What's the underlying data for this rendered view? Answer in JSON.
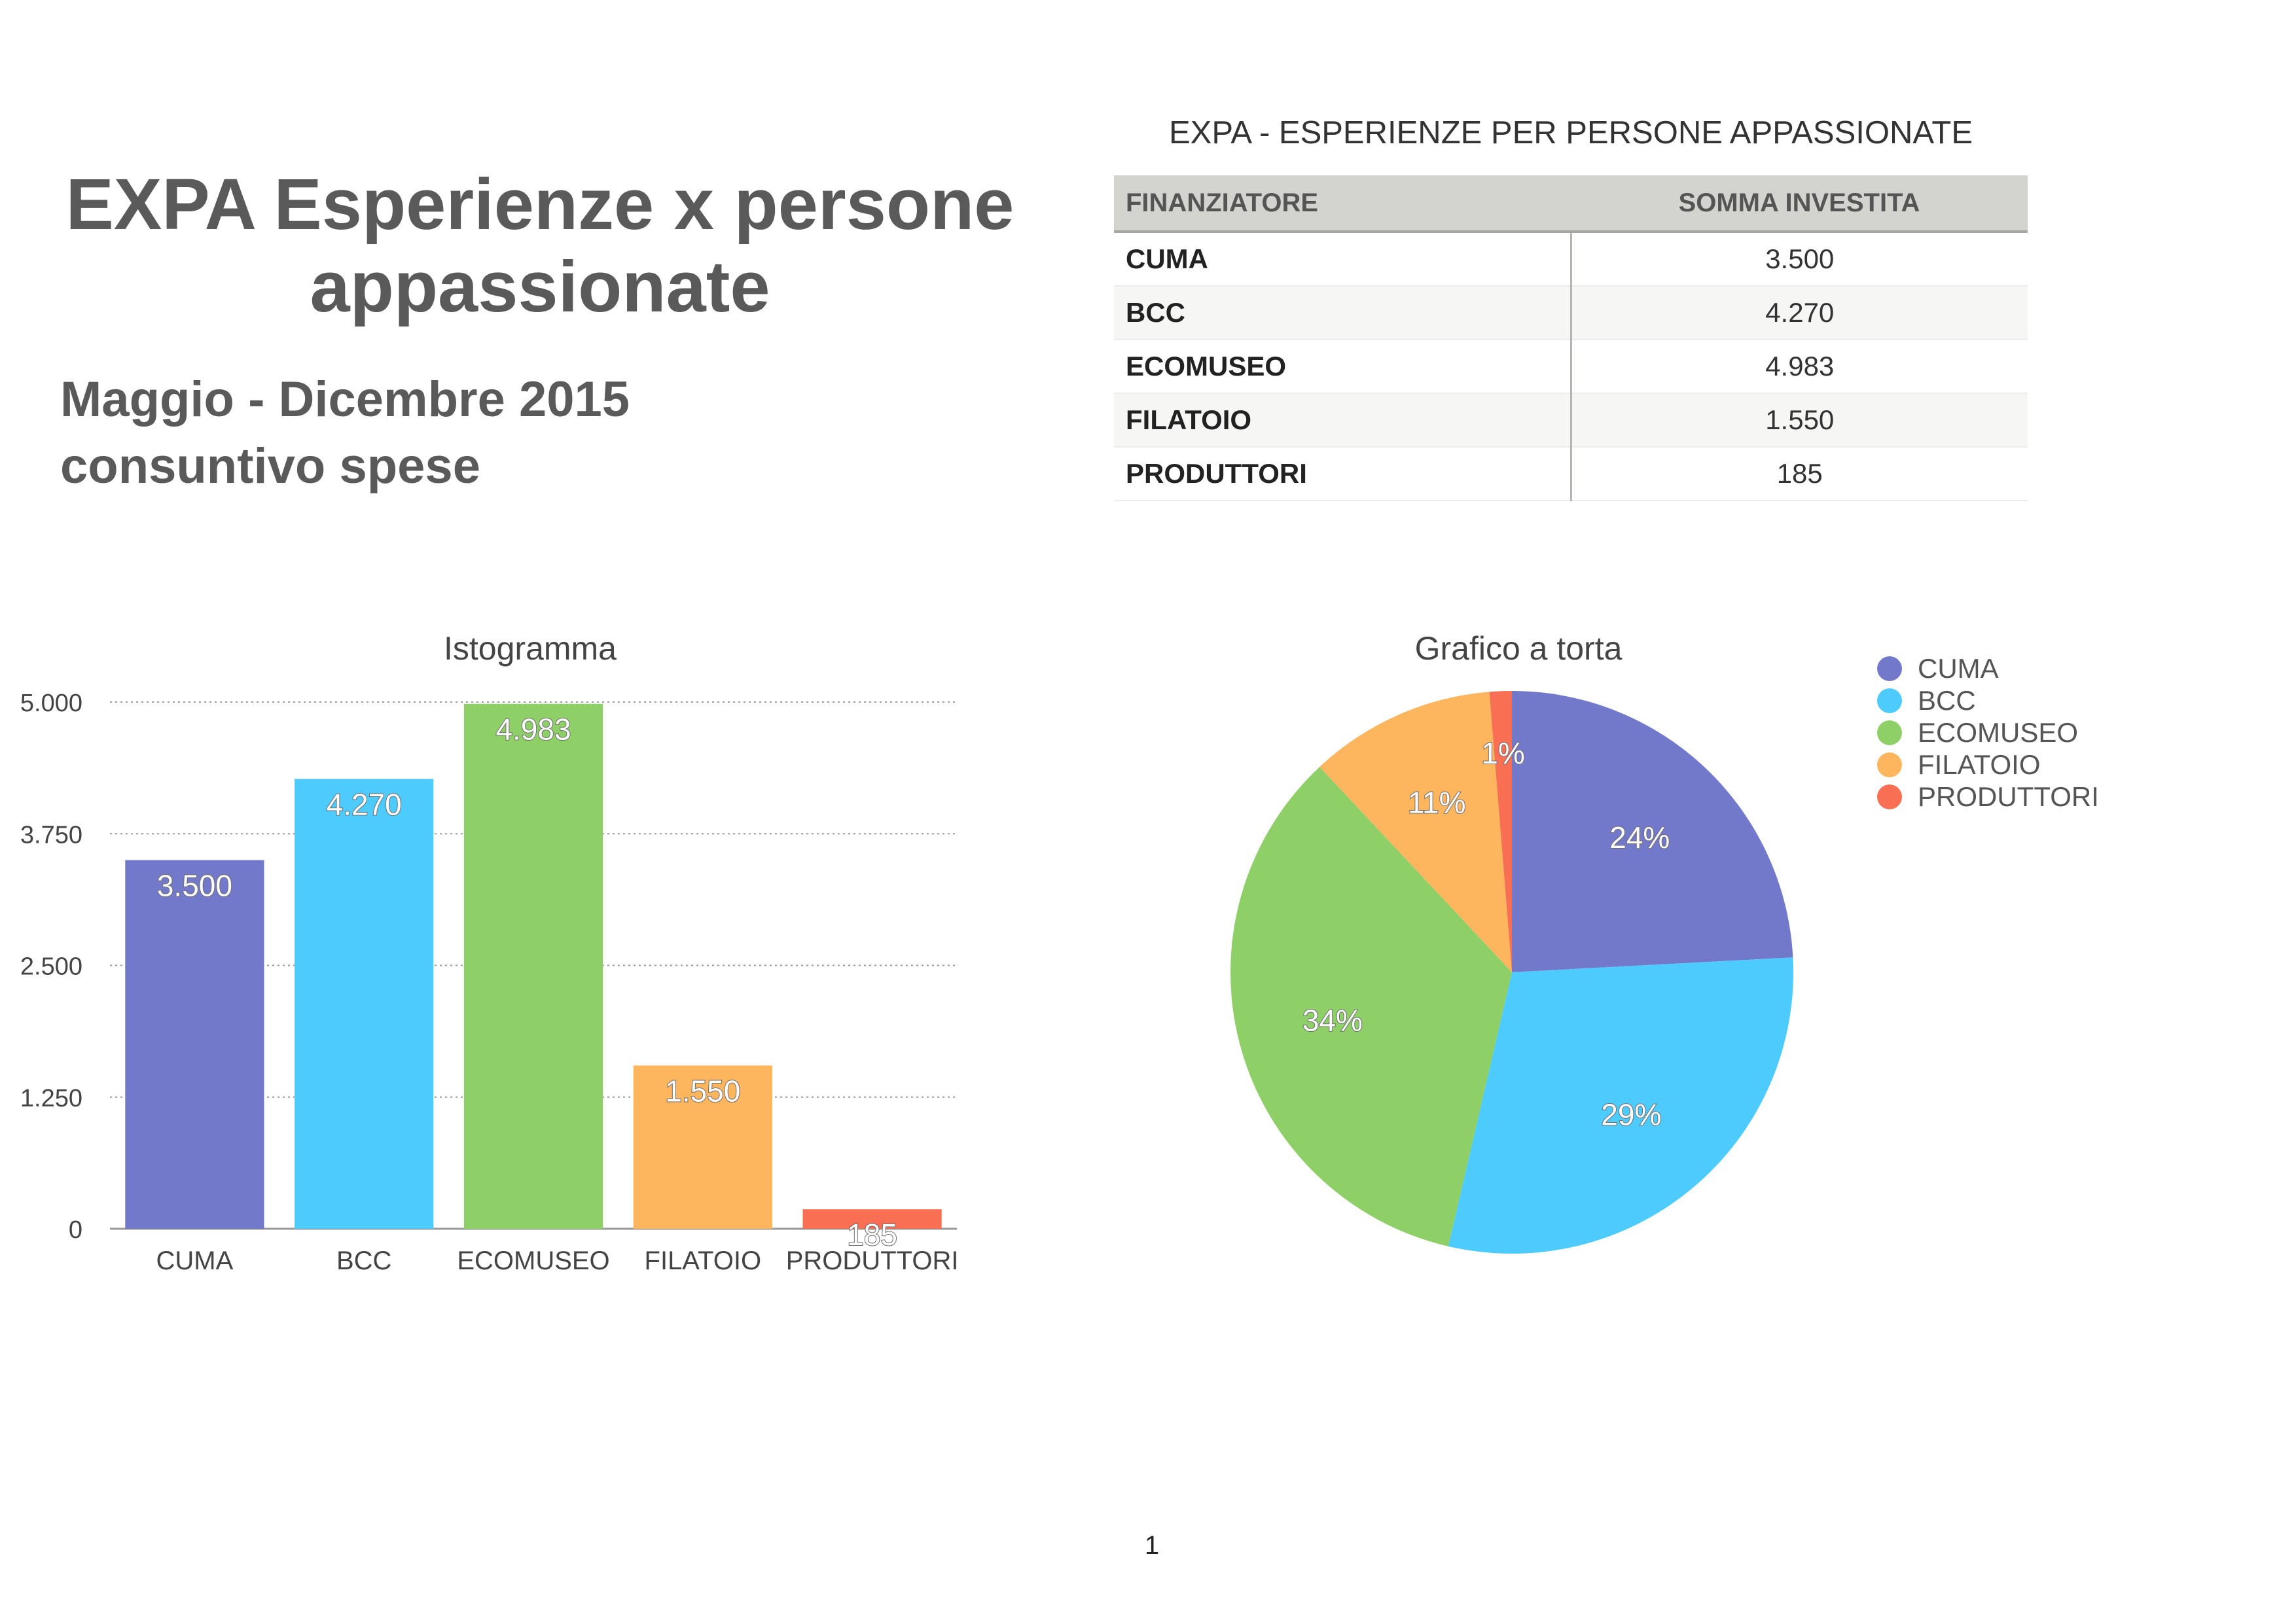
{
  "document": {
    "title": "EXPA Esperienze x persone appassionate",
    "subtitle_line1": "Maggio - Dicembre 2015",
    "subtitle_line2": "consuntivo spese",
    "page_number": "1"
  },
  "table": {
    "title": "EXPA - ESPERIENZE PER PERSONE APPASSIONATE",
    "headers": [
      "FINANZIATORE",
      "SOMMA INVESTITA"
    ],
    "rows": [
      [
        "CUMA",
        "3.500"
      ],
      [
        "BCC",
        "4.270"
      ],
      [
        "ECOMUSEO",
        "4.983"
      ],
      [
        "FILATOIO",
        "1.550"
      ],
      [
        "PRODUTTORI",
        "185"
      ]
    ]
  },
  "colors": {
    "CUMA": "#7279cb",
    "BCC": "#4dcbfd",
    "ECOMUSEO": "#8ecf67",
    "FILATOIO": "#fdb55e",
    "PRODUTTORI": "#f86f54"
  },
  "chart_data": [
    {
      "type": "bar",
      "title": "Istogramma",
      "categories": [
        "CUMA",
        "BCC",
        "ECOMUSEO",
        "FILATOIO",
        "PRODUTTORI"
      ],
      "values": [
        3500,
        4270,
        4983,
        1550,
        185
      ],
      "data_labels": [
        "3.500",
        "4.270",
        "4.983",
        "1.550",
        "185"
      ],
      "ylim": [
        0,
        5000
      ],
      "yticks": [
        0,
        1250,
        2500,
        3750,
        5000
      ],
      "ytick_labels": [
        "0",
        "1.250",
        "2.500",
        "3.750",
        "5.000"
      ],
      "grid": true
    },
    {
      "type": "pie",
      "title": "Grafico a torta",
      "labels": [
        "CUMA",
        "BCC",
        "ECOMUSEO",
        "FILATOIO",
        "PRODUTTORI"
      ],
      "values": [
        3500,
        4270,
        4983,
        1550,
        185
      ],
      "percent_labels": [
        "24%",
        "29%",
        "34%",
        "11%",
        "1%"
      ],
      "legend": "right"
    }
  ]
}
